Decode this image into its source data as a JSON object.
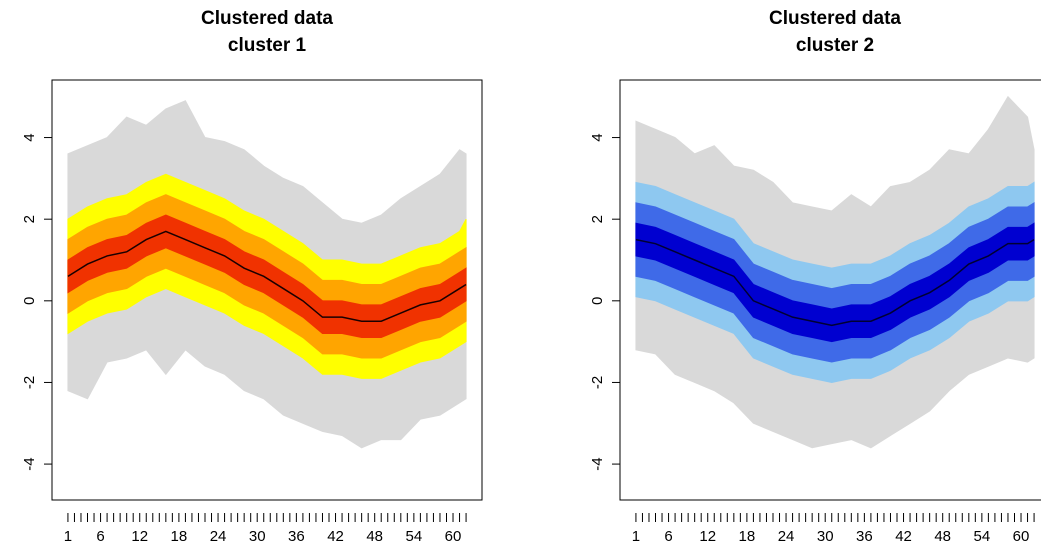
{
  "chart_data": [
    {
      "type": "fan",
      "title": "Clustered data",
      "subtitle": "cluster 1",
      "xlim": [
        -1.44,
        64.44
      ],
      "ylim": [
        -4.88,
        5.41
      ],
      "xticks": [
        1,
        6,
        12,
        18,
        24,
        30,
        36,
        42,
        48,
        54,
        60
      ],
      "xminorticks": [
        1,
        2,
        3,
        4,
        5,
        6,
        7,
        8,
        9,
        10,
        11,
        12,
        13,
        14,
        15,
        16,
        17,
        18,
        19,
        20,
        21,
        22,
        23,
        24,
        25,
        26,
        27,
        28,
        29,
        30,
        31,
        32,
        33,
        34,
        35,
        36,
        37,
        38,
        39,
        40,
        41,
        42,
        43,
        44,
        45,
        46,
        47,
        48,
        49,
        50,
        51,
        52,
        53,
        54,
        55,
        56,
        57,
        58,
        59,
        60,
        61,
        62
      ],
      "yticks": [
        -4,
        -2,
        0,
        2,
        4
      ],
      "x": [
        1,
        4,
        7,
        10,
        13,
        16,
        19,
        22,
        25,
        28,
        31,
        34,
        37,
        40,
        43,
        46,
        49,
        52,
        55,
        58,
        61,
        62
      ],
      "bands": [
        {
          "color": "#d9d9d9",
          "lower": [
            -2.2,
            -2.4,
            -1.5,
            -1.4,
            -1.2,
            -1.8,
            -1.2,
            -1.6,
            -1.8,
            -2.2,
            -2.4,
            -2.8,
            -3.0,
            -3.2,
            -3.3,
            -3.6,
            -3.4,
            -3.4,
            -2.9,
            -2.8,
            -2.5,
            -2.4
          ],
          "upper": [
            3.6,
            3.8,
            4.0,
            4.5,
            4.3,
            4.7,
            4.9,
            4.0,
            3.9,
            3.7,
            3.3,
            3.0,
            2.8,
            2.4,
            2.0,
            1.9,
            2.1,
            2.5,
            2.8,
            3.1,
            3.7,
            3.6
          ]
        },
        {
          "color": "#ffff00",
          "lower": [
            -0.8,
            -0.5,
            -0.3,
            -0.2,
            0.1,
            0.3,
            0.1,
            -0.1,
            -0.3,
            -0.6,
            -0.8,
            -1.1,
            -1.4,
            -1.8,
            -1.8,
            -1.9,
            -1.9,
            -1.7,
            -1.5,
            -1.4,
            -1.1,
            -1.0
          ],
          "upper": [
            2.0,
            2.3,
            2.5,
            2.6,
            2.9,
            3.1,
            2.9,
            2.7,
            2.5,
            2.2,
            2.0,
            1.7,
            1.4,
            1.0,
            1.0,
            0.9,
            0.9,
            1.1,
            1.3,
            1.4,
            1.7,
            2.0
          ]
        },
        {
          "color": "#ffa500",
          "lower": [
            -0.3,
            0.0,
            0.2,
            0.3,
            0.6,
            0.8,
            0.6,
            0.4,
            0.2,
            -0.1,
            -0.3,
            -0.6,
            -0.9,
            -1.3,
            -1.3,
            -1.4,
            -1.4,
            -1.2,
            -1.0,
            -0.9,
            -0.6,
            -0.5
          ],
          "upper": [
            1.5,
            1.8,
            2.0,
            2.1,
            2.4,
            2.6,
            2.4,
            2.2,
            2.0,
            1.7,
            1.5,
            1.2,
            0.9,
            0.5,
            0.5,
            0.4,
            0.4,
            0.6,
            0.8,
            0.9,
            1.2,
            1.3
          ]
        },
        {
          "color": "#f03200",
          "lower": [
            0.2,
            0.5,
            0.7,
            0.8,
            1.1,
            1.3,
            1.1,
            0.9,
            0.7,
            0.4,
            0.2,
            -0.1,
            -0.4,
            -0.8,
            -0.8,
            -0.9,
            -0.9,
            -0.7,
            -0.5,
            -0.4,
            -0.1,
            0.0
          ],
          "upper": [
            1.0,
            1.3,
            1.5,
            1.6,
            1.9,
            2.1,
            1.9,
            1.7,
            1.5,
            1.2,
            1.0,
            0.7,
            0.4,
            0.0,
            0.0,
            -0.1,
            -0.1,
            0.1,
            0.3,
            0.4,
            0.7,
            0.8
          ]
        }
      ],
      "line": {
        "color": "#1a0000",
        "values": [
          0.6,
          0.9,
          1.1,
          1.2,
          1.5,
          1.7,
          1.5,
          1.3,
          1.1,
          0.8,
          0.6,
          0.3,
          0.0,
          -0.4,
          -0.4,
          -0.5,
          -0.5,
          -0.3,
          -0.1,
          0.0,
          0.3,
          0.4
        ]
      }
    },
    {
      "type": "fan",
      "title": "Clustered data",
      "subtitle": "cluster 2",
      "xlim": [
        -1.44,
        64.44
      ],
      "ylim": [
        -4.88,
        5.41
      ],
      "xticks": [
        1,
        6,
        12,
        18,
        24,
        30,
        36,
        42,
        48,
        54,
        60
      ],
      "xminorticks": [
        1,
        2,
        3,
        4,
        5,
        6,
        7,
        8,
        9,
        10,
        11,
        12,
        13,
        14,
        15,
        16,
        17,
        18,
        19,
        20,
        21,
        22,
        23,
        24,
        25,
        26,
        27,
        28,
        29,
        30,
        31,
        32,
        33,
        34,
        35,
        36,
        37,
        38,
        39,
        40,
        41,
        42,
        43,
        44,
        45,
        46,
        47,
        48,
        49,
        50,
        51,
        52,
        53,
        54,
        55,
        56,
        57,
        58,
        59,
        60,
        61,
        62
      ],
      "yticks": [
        -4,
        -2,
        0,
        2,
        4
      ],
      "x": [
        1,
        4,
        7,
        10,
        13,
        16,
        19,
        22,
        25,
        28,
        31,
        34,
        37,
        40,
        43,
        46,
        49,
        52,
        55,
        58,
        61,
        62
      ],
      "bands": [
        {
          "color": "#d9d9d9",
          "lower": [
            -1.2,
            -1.3,
            -1.8,
            -2.0,
            -2.2,
            -2.5,
            -3.0,
            -3.2,
            -3.4,
            -3.6,
            -3.5,
            -3.4,
            -3.6,
            -3.3,
            -3.0,
            -2.7,
            -2.2,
            -1.8,
            -1.6,
            -1.4,
            -1.5,
            -1.4
          ],
          "upper": [
            4.4,
            4.2,
            4.0,
            3.6,
            3.8,
            3.3,
            3.2,
            2.9,
            2.4,
            2.3,
            2.2,
            2.6,
            2.3,
            2.8,
            2.9,
            3.2,
            3.7,
            3.6,
            4.2,
            5.0,
            4.5,
            3.7
          ]
        },
        {
          "color": "#8ec8f0",
          "lower": [
            0.1,
            0.0,
            -0.2,
            -0.4,
            -0.6,
            -0.8,
            -1.4,
            -1.6,
            -1.8,
            -1.9,
            -2.0,
            -1.9,
            -1.9,
            -1.7,
            -1.4,
            -1.2,
            -0.9,
            -0.5,
            -0.3,
            0.0,
            0.0,
            0.1
          ],
          "upper": [
            2.9,
            2.8,
            2.6,
            2.4,
            2.2,
            2.0,
            1.4,
            1.2,
            1.0,
            0.9,
            0.8,
            0.9,
            0.9,
            1.1,
            1.4,
            1.6,
            1.9,
            2.3,
            2.5,
            2.8,
            2.8,
            2.9
          ]
        },
        {
          "color": "#3f6ae8",
          "lower": [
            0.6,
            0.5,
            0.3,
            0.1,
            -0.1,
            -0.3,
            -0.9,
            -1.1,
            -1.3,
            -1.4,
            -1.5,
            -1.4,
            -1.4,
            -1.2,
            -0.9,
            -0.7,
            -0.4,
            0.0,
            0.2,
            0.5,
            0.5,
            0.6
          ],
          "upper": [
            2.4,
            2.3,
            2.1,
            1.9,
            1.7,
            1.5,
            0.9,
            0.7,
            0.5,
            0.4,
            0.3,
            0.4,
            0.4,
            0.6,
            0.9,
            1.1,
            1.4,
            1.8,
            2.0,
            2.3,
            2.3,
            2.4
          ]
        },
        {
          "color": "#0000d0",
          "lower": [
            1.1,
            1.0,
            0.8,
            0.6,
            0.4,
            0.2,
            -0.4,
            -0.6,
            -0.8,
            -0.9,
            -1.0,
            -0.9,
            -0.9,
            -0.7,
            -0.4,
            -0.2,
            0.1,
            0.5,
            0.7,
            1.0,
            1.0,
            1.1
          ],
          "upper": [
            1.9,
            1.8,
            1.6,
            1.4,
            1.2,
            1.0,
            0.4,
            0.2,
            0.0,
            -0.1,
            -0.2,
            -0.1,
            -0.1,
            0.1,
            0.4,
            0.6,
            0.9,
            1.3,
            1.5,
            1.8,
            1.8,
            1.9
          ]
        }
      ],
      "line": {
        "color": "#000033",
        "values": [
          1.5,
          1.4,
          1.2,
          1.0,
          0.8,
          0.6,
          0.0,
          -0.2,
          -0.4,
          -0.5,
          -0.6,
          -0.5,
          -0.5,
          -0.3,
          0.0,
          0.2,
          0.5,
          0.9,
          1.1,
          1.4,
          1.4,
          1.5
        ]
      }
    }
  ]
}
